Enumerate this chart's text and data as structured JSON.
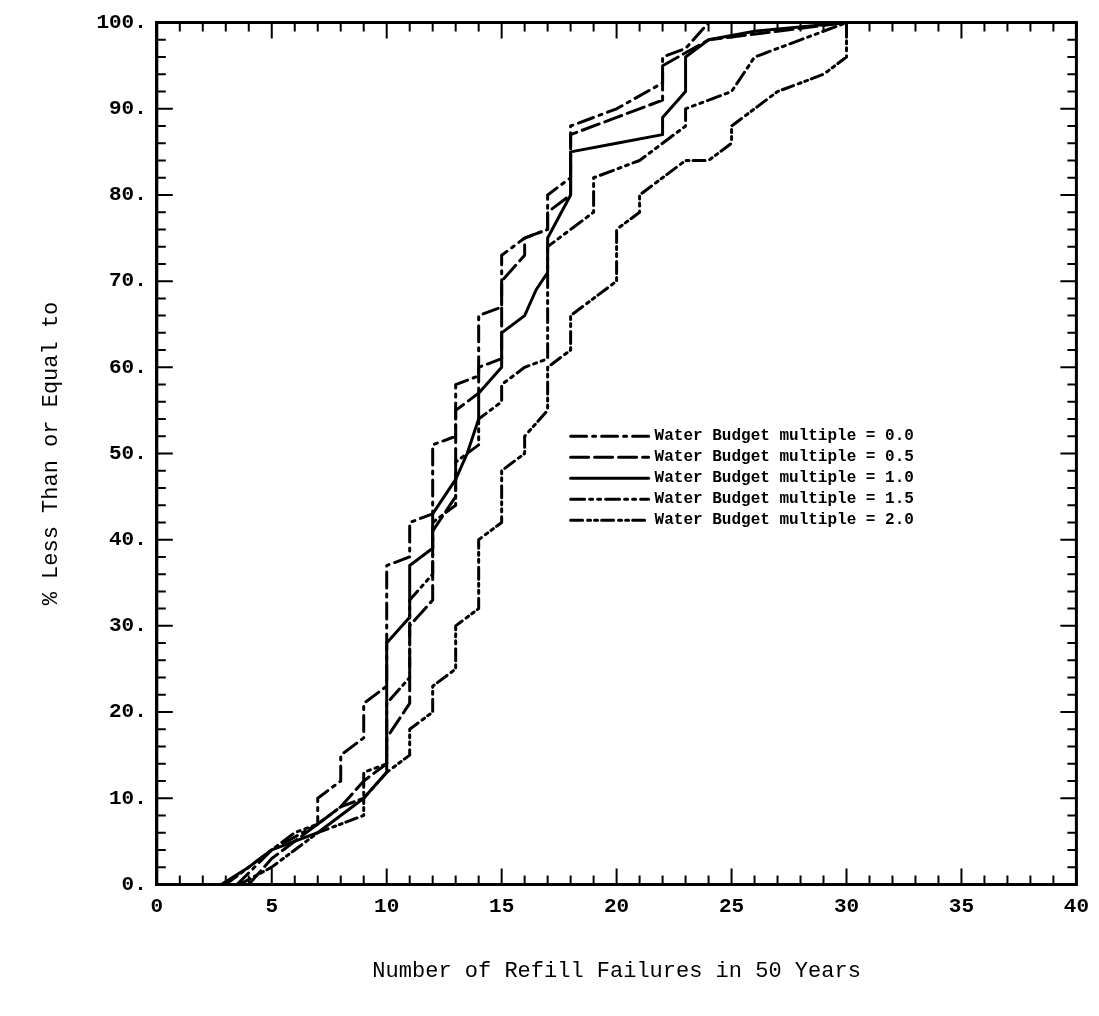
{
  "chart_data": {
    "type": "line",
    "xlabel": "Number of Refill Failures in 50 Years",
    "ylabel": "% Less Than or Equal to",
    "xlim": [
      0,
      40
    ],
    "ylim": [
      0,
      100
    ],
    "xticks": [
      0,
      {
        "value": 1,
        "label": null
      },
      {
        "value": 2,
        "label": null
      },
      {
        "value": 3,
        "label": null
      },
      {
        "value": 4,
        "label": null
      },
      5,
      {
        "value": 6,
        "label": null
      },
      {
        "value": 7,
        "label": null
      },
      {
        "value": 8,
        "label": null
      },
      {
        "value": 9,
        "label": null
      },
      10,
      {
        "value": 11,
        "label": null
      },
      {
        "value": 12,
        "label": null
      },
      {
        "value": 13,
        "label": null
      },
      {
        "value": 14,
        "label": null
      },
      15,
      {
        "value": 16,
        "label": null
      },
      {
        "value": 17,
        "label": null
      },
      {
        "value": 18,
        "label": null
      },
      {
        "value": 19,
        "label": null
      },
      20,
      {
        "value": 21,
        "label": null
      },
      {
        "value": 22,
        "label": null
      },
      {
        "value": 23,
        "label": null
      },
      {
        "value": 24,
        "label": null
      },
      25,
      {
        "value": 26,
        "label": null
      },
      {
        "value": 27,
        "label": null
      },
      {
        "value": 28,
        "label": null
      },
      {
        "value": 29,
        "label": null
      },
      30,
      {
        "value": 31,
        "label": null
      },
      {
        "value": 32,
        "label": null
      },
      {
        "value": 33,
        "label": null
      },
      {
        "value": 34,
        "label": null
      },
      35,
      {
        "value": 36,
        "label": null
      },
      {
        "value": 37,
        "label": null
      },
      {
        "value": 38,
        "label": null
      },
      {
        "value": 39,
        "label": null
      },
      40
    ],
    "yticks": [
      {
        "value": 0,
        "label": "0."
      },
      {
        "value": 2,
        "label": null
      },
      {
        "value": 4,
        "label": null
      },
      {
        "value": 6,
        "label": null
      },
      {
        "value": 8,
        "label": null
      },
      {
        "value": 10,
        "label": "10."
      },
      {
        "value": 12,
        "label": null
      },
      {
        "value": 14,
        "label": null
      },
      {
        "value": 16,
        "label": null
      },
      {
        "value": 18,
        "label": null
      },
      {
        "value": 20,
        "label": "20."
      },
      {
        "value": 22,
        "label": null
      },
      {
        "value": 24,
        "label": null
      },
      {
        "value": 26,
        "label": null
      },
      {
        "value": 28,
        "label": null
      },
      {
        "value": 30,
        "label": "30."
      },
      {
        "value": 32,
        "label": null
      },
      {
        "value": 34,
        "label": null
      },
      {
        "value": 36,
        "label": null
      },
      {
        "value": 38,
        "label": null
      },
      {
        "value": 40,
        "label": "40."
      },
      {
        "value": 42,
        "label": null
      },
      {
        "value": 44,
        "label": null
      },
      {
        "value": 46,
        "label": null
      },
      {
        "value": 48,
        "label": null
      },
      {
        "value": 50,
        "label": "50."
      },
      {
        "value": 52,
        "label": null
      },
      {
        "value": 54,
        "label": null
      },
      {
        "value": 56,
        "label": null
      },
      {
        "value": 58,
        "label": null
      },
      {
        "value": 60,
        "label": "60."
      },
      {
        "value": 62,
        "label": null
      },
      {
        "value": 64,
        "label": null
      },
      {
        "value": 66,
        "label": null
      },
      {
        "value": 68,
        "label": null
      },
      {
        "value": 70,
        "label": "70."
      },
      {
        "value": 72,
        "label": null
      },
      {
        "value": 74,
        "label": null
      },
      {
        "value": 76,
        "label": null
      },
      {
        "value": 78,
        "label": null
      },
      {
        "value": 80,
        "label": "80."
      },
      {
        "value": 82,
        "label": null
      },
      {
        "value": 84,
        "label": null
      },
      {
        "value": 86,
        "label": null
      },
      {
        "value": 88,
        "label": null
      },
      {
        "value": 90,
        "label": "90."
      },
      {
        "value": 92,
        "label": null
      },
      {
        "value": 94,
        "label": null
      },
      {
        "value": 96,
        "label": null
      },
      {
        "value": 98,
        "label": null
      },
      {
        "value": 100,
        "label": "100."
      }
    ],
    "legend": "right",
    "marker": "none",
    "series": [
      {
        "name": "Water Budget multiple = 0.0",
        "color": "#000000",
        "line_style": "dashed",
        "x": [
          3.5,
          5,
          7,
          7,
          8,
          8,
          9,
          9,
          10,
          10,
          11,
          11,
          12,
          12,
          13,
          13,
          14,
          14,
          15,
          15,
          16,
          17,
          17,
          18,
          18,
          20,
          22,
          22,
          23,
          24,
          36
        ],
        "values": [
          0,
          4,
          7,
          10,
          12,
          15,
          17,
          21,
          23,
          37,
          38,
          42,
          43,
          51,
          52,
          58,
          59,
          66,
          67,
          73,
          75,
          76,
          80,
          82,
          88,
          90,
          93,
          96,
          97,
          100,
          100
        ]
      },
      {
        "name": "Water Budget multiple = 0.5",
        "color": "#000000",
        "line_style": "dashed",
        "x": [
          4,
          5,
          6,
          7,
          8,
          9,
          10,
          10,
          11,
          11,
          12,
          12,
          13,
          13,
          14,
          14,
          15,
          15,
          16,
          16,
          17,
          17,
          18,
          18,
          20,
          22,
          22,
          24,
          27,
          30,
          36
        ],
        "values": [
          0,
          3,
          5,
          7,
          9,
          12,
          14,
          17,
          21,
          30,
          33,
          41,
          45,
          55,
          57,
          60,
          61,
          70,
          73,
          75,
          76,
          78,
          80,
          87,
          89,
          91,
          95,
          98,
          99,
          100,
          100
        ]
      },
      {
        "name": "Water Budget multiple = 1.0",
        "color": "#000000",
        "line_style": "solid",
        "x": [
          2.8,
          4,
          5,
          7,
          8,
          9,
          10,
          10,
          11,
          11,
          12,
          12,
          13,
          13.5,
          14,
          14,
          15,
          15,
          16,
          16.5,
          17,
          17,
          18,
          18,
          20,
          22,
          22,
          23,
          23,
          24,
          26,
          30,
          36
        ],
        "values": [
          0,
          2,
          4,
          6,
          8,
          10,
          13,
          28,
          31,
          37,
          39,
          43,
          47,
          50,
          54,
          57,
          60,
          64,
          66,
          69,
          71,
          75,
          80,
          85,
          86,
          87,
          89,
          92,
          96,
          98,
          99,
          100,
          100
        ]
      },
      {
        "name": "Water Budget multiple = 1.5",
        "color": "#000000",
        "line_style": "dashed",
        "x": [
          3,
          4,
          5,
          6,
          7,
          8,
          9,
          9,
          10,
          10,
          11,
          11,
          12,
          12,
          13,
          13,
          14,
          14,
          15,
          15,
          16,
          17,
          17,
          18,
          19,
          19,
          20,
          21,
          22,
          23,
          23,
          25,
          26,
          28,
          30,
          36
        ],
        "values": [
          0,
          2,
          4,
          6,
          7,
          9,
          10,
          13,
          14,
          21,
          24,
          33,
          36,
          42,
          44,
          49,
          51,
          54,
          56,
          58,
          60,
          61,
          74,
          76,
          78,
          82,
          83,
          84,
          86,
          88,
          90,
          92,
          96,
          98,
          100,
          100
        ]
      },
      {
        "name": "Water Budget multiple = 2.0",
        "color": "#000000",
        "line_style": "dashed",
        "x": [
          3.6,
          5,
          6,
          7,
          8,
          9,
          9,
          10,
          11,
          11,
          12,
          12,
          13,
          13,
          14,
          14,
          15,
          15,
          16,
          16,
          17,
          17,
          18,
          18,
          19,
          20,
          20,
          21,
          21,
          22,
          23,
          24,
          25,
          25,
          26,
          27,
          29,
          30,
          30,
          36
        ],
        "values": [
          0,
          2,
          4,
          6,
          7,
          8,
          10,
          13,
          15,
          18,
          20,
          23,
          25,
          30,
          32,
          40,
          42,
          48,
          50,
          52,
          55,
          60,
          62,
          66,
          68,
          70,
          76,
          78,
          80,
          82,
          84,
          84,
          86,
          88,
          90,
          92,
          94,
          96,
          100,
          100
        ]
      }
    ]
  }
}
